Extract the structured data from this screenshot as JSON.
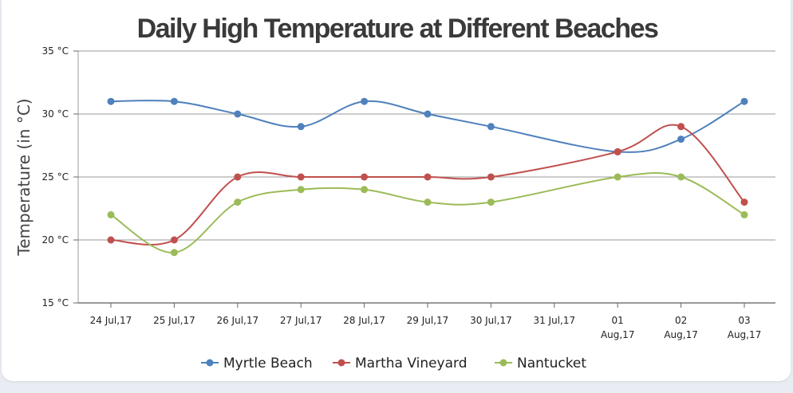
{
  "chart_data": {
    "type": "line",
    "title": "Daily High Temperature at Different Beaches",
    "ylabel": "Temperature (in °C)",
    "xlabel": "",
    "ylim": [
      15,
      35
    ],
    "yticks": [
      15,
      20,
      25,
      30,
      35
    ],
    "ytick_labels": [
      "15 °C",
      "20 °C",
      "25 °C",
      "30 °C",
      "35 °C"
    ],
    "categories": [
      [
        "24 Jul,17"
      ],
      [
        "25 Jul,17"
      ],
      [
        "26 Jul,17"
      ],
      [
        "27 Jul,17"
      ],
      [
        "28 Jul,17"
      ],
      [
        "29 Jul,17"
      ],
      [
        "30 Jul,17"
      ],
      [
        "31 Jul,17"
      ],
      [
        "01",
        "Aug,17"
      ],
      [
        "02",
        "Aug,17"
      ],
      [
        "03",
        "Aug,17"
      ]
    ],
    "series": [
      {
        "name": "Myrtle Beach",
        "color": "#4f81bc",
        "values": [
          31,
          31,
          30,
          29,
          31,
          30,
          29,
          null,
          27,
          28,
          31
        ]
      },
      {
        "name": "Martha Vineyard",
        "color": "#c0504e",
        "values": [
          20,
          20,
          25,
          25,
          25,
          25,
          25,
          null,
          27,
          29,
          23
        ]
      },
      {
        "name": "Nantucket",
        "color": "#9bbb58",
        "values": [
          22,
          19,
          23,
          24,
          24,
          23,
          23,
          null,
          25,
          25,
          22
        ]
      }
    ],
    "grid": true,
    "legend_position": "bottom-center"
  }
}
